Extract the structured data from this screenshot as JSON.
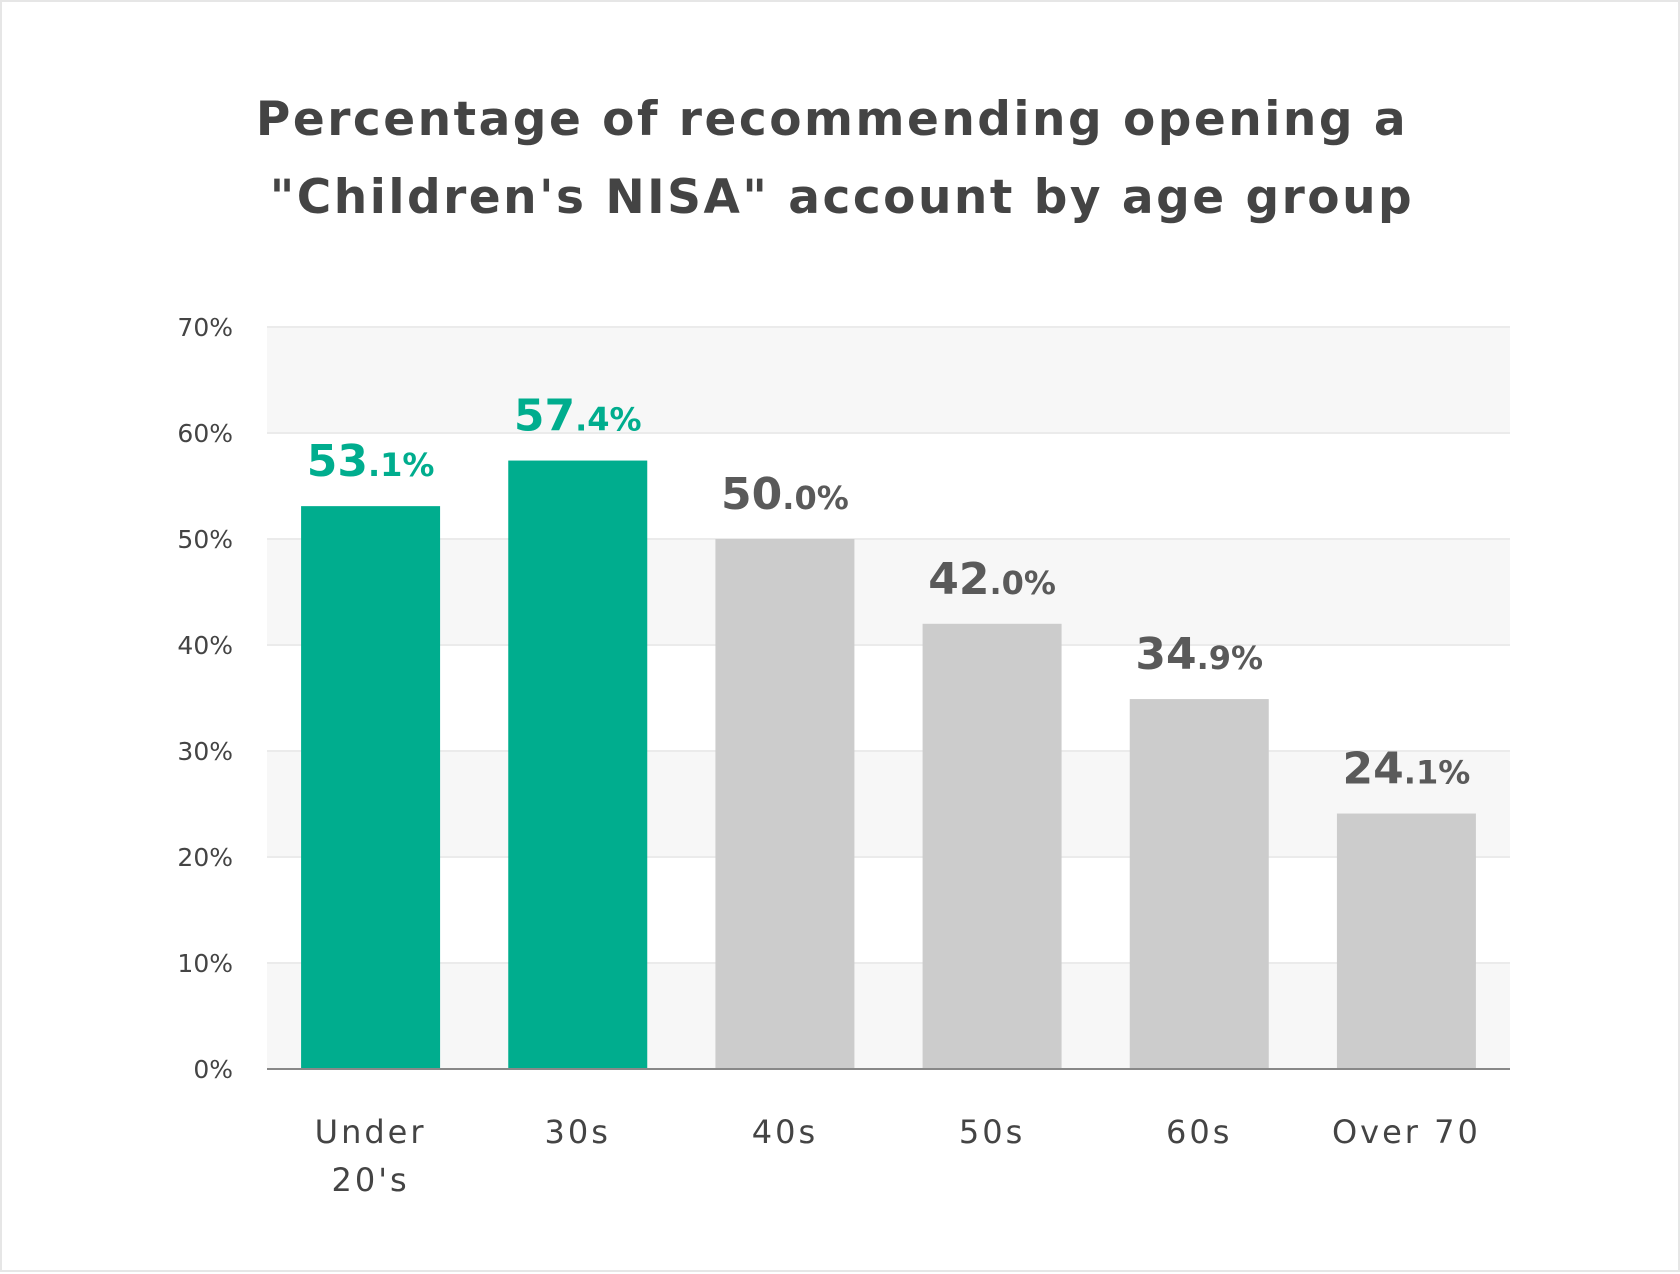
{
  "chart_data": {
    "type": "bar",
    "title": [
      "Percentage of recommending opening a",
      "\"Children's NISA\" account by age group"
    ],
    "categories": [
      [
        "Under",
        "20's"
      ],
      [
        "30s"
      ],
      [
        "40s"
      ],
      [
        "50s"
      ],
      [
        "60s"
      ],
      [
        "Over 70"
      ]
    ],
    "values": [
      53.1,
      57.4,
      50.0,
      42.0,
      34.9,
      24.1
    ],
    "data_labels": [
      {
        "int": "53",
        "dec": ".1%"
      },
      {
        "int": "57",
        "dec": ".4%"
      },
      {
        "int": "50",
        "dec": ".0%"
      },
      {
        "int": "42",
        "dec": ".0%"
      },
      {
        "int": "34",
        "dec": ".9%"
      },
      {
        "int": "24",
        "dec": ".1%"
      }
    ],
    "highlighted": [
      true,
      true,
      false,
      false,
      false,
      false
    ],
    "ylim": [
      0,
      70
    ],
    "yticks": [
      "0%",
      "10%",
      "20%",
      "30%",
      "40%",
      "50%",
      "60%",
      "70%"
    ],
    "grid": true,
    "colors": {
      "highlight": "#00ad8e",
      "normal": "#cccccc",
      "label_normal": "#5a5a5a",
      "band": "#f7f7f7",
      "gridline": "#ebebeb",
      "axis": "#888888"
    }
  }
}
